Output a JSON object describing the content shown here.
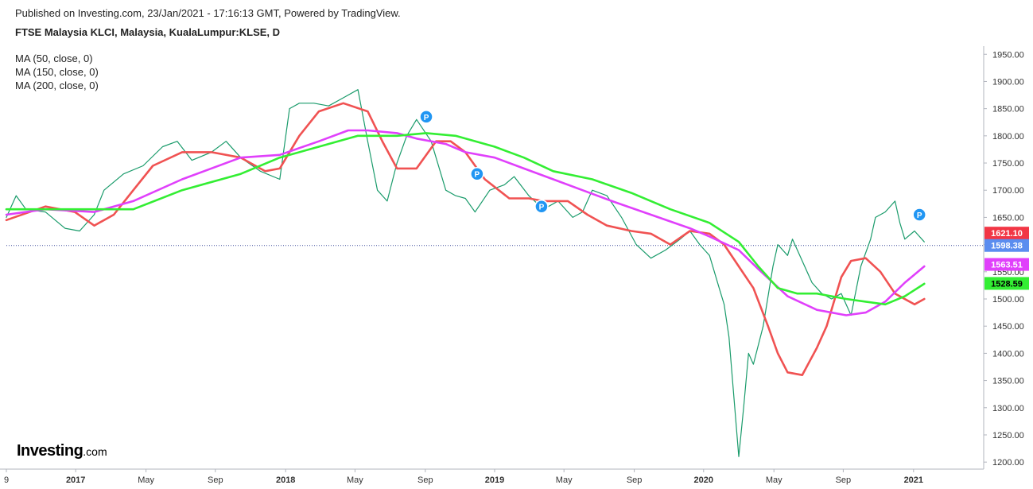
{
  "header": {
    "published": "Published on Investing.com, 23/Jan/2021 - 17:16:13 GMT, Powered by TradingView.",
    "symbol": "FTSE Malaysia KLCI, Malaysia, KualaLumpur:KLSE, D"
  },
  "indicators": [
    {
      "label": "MA (50, close, 0)",
      "color": "#f05252"
    },
    {
      "label": "MA (150, close, 0)",
      "color": "#e040fb"
    },
    {
      "label": "MA (200, close, 0)",
      "color": "#33ee33"
    }
  ],
  "logo": {
    "bold": "Investing",
    "thin": ".com"
  },
  "chart_data": {
    "type": "line",
    "ylim": [
      1190,
      1965
    ],
    "y_ticks": [
      "1950.00",
      "1900.00",
      "1850.00",
      "1800.00",
      "1750.00",
      "1700.00",
      "1650.00",
      "1600.00",
      "1550.00",
      "1500.00",
      "1450.00",
      "1400.00",
      "1350.00",
      "1300.00",
      "1250.00",
      "1200.00"
    ],
    "x_ticks": [
      "9",
      "2017",
      "May",
      "Sep",
      "2018",
      "May",
      "Sep",
      "2019",
      "May",
      "Sep",
      "2020",
      "May",
      "Sep",
      "2021"
    ],
    "x_tick_positions": [
      0.0,
      0.071,
      0.143,
      0.214,
      0.286,
      0.357,
      0.429,
      0.5,
      0.571,
      0.643,
      0.714,
      0.786,
      0.857,
      0.929
    ],
    "series": [
      {
        "role": "price",
        "color": "#1a9b6b",
        "x": [
          0.0,
          0.01,
          0.02,
          0.04,
          0.06,
          0.075,
          0.09,
          0.1,
          0.12,
          0.14,
          0.16,
          0.175,
          0.19,
          0.21,
          0.225,
          0.24,
          0.26,
          0.28,
          0.29,
          0.3,
          0.315,
          0.33,
          0.345,
          0.36,
          0.37,
          0.38,
          0.39,
          0.4,
          0.41,
          0.42,
          0.435,
          0.45,
          0.46,
          0.47,
          0.48,
          0.495,
          0.51,
          0.52,
          0.535,
          0.55,
          0.565,
          0.58,
          0.59,
          0.6,
          0.615,
          0.63,
          0.645,
          0.66,
          0.675,
          0.69,
          0.7,
          0.71,
          0.72,
          0.73,
          0.735,
          0.74,
          0.75,
          0.755,
          0.76,
          0.765,
          0.775,
          0.785,
          0.79,
          0.8,
          0.805,
          0.815,
          0.825,
          0.835,
          0.845,
          0.855,
          0.865,
          0.875,
          0.885,
          0.89,
          0.9,
          0.91,
          0.915,
          0.92,
          0.93,
          0.94
        ],
        "values": [
          1650,
          1690,
          1665,
          1660,
          1630,
          1625,
          1655,
          1700,
          1730,
          1745,
          1780,
          1790,
          1755,
          1770,
          1790,
          1760,
          1735,
          1720,
          1850,
          1860,
          1860,
          1855,
          1870,
          1885,
          1790,
          1700,
          1680,
          1750,
          1800,
          1830,
          1790,
          1700,
          1690,
          1685,
          1660,
          1700,
          1710,
          1725,
          1690,
          1665,
          1680,
          1650,
          1660,
          1700,
          1690,
          1650,
          1600,
          1575,
          1590,
          1610,
          1625,
          1600,
          1580,
          1520,
          1490,
          1430,
          1210,
          1300,
          1400,
          1380,
          1450,
          1560,
          1600,
          1580,
          1610,
          1570,
          1530,
          1510,
          1500,
          1510,
          1470,
          1560,
          1610,
          1650,
          1660,
          1680,
          1640,
          1610,
          1625,
          1605
        ]
      },
      {
        "label": "MA (50, close, 0)",
        "color": "#f05252",
        "x": [
          0.0,
          0.04,
          0.07,
          0.09,
          0.11,
          0.13,
          0.15,
          0.18,
          0.21,
          0.24,
          0.265,
          0.28,
          0.3,
          0.32,
          0.345,
          0.37,
          0.385,
          0.4,
          0.42,
          0.44,
          0.455,
          0.47,
          0.49,
          0.515,
          0.535,
          0.55,
          0.575,
          0.595,
          0.615,
          0.64,
          0.66,
          0.68,
          0.7,
          0.72,
          0.735,
          0.75,
          0.765,
          0.78,
          0.79,
          0.8,
          0.815,
          0.83,
          0.84,
          0.855,
          0.865,
          0.88,
          0.895,
          0.91,
          0.93,
          0.94
        ],
        "values": [
          1645,
          1670,
          1660,
          1635,
          1655,
          1700,
          1745,
          1770,
          1770,
          1760,
          1735,
          1740,
          1800,
          1845,
          1860,
          1845,
          1790,
          1740,
          1740,
          1790,
          1790,
          1770,
          1720,
          1685,
          1685,
          1680,
          1680,
          1655,
          1635,
          1625,
          1620,
          1600,
          1625,
          1620,
          1600,
          1560,
          1520,
          1450,
          1400,
          1365,
          1360,
          1410,
          1450,
          1540,
          1570,
          1575,
          1550,
          1510,
          1490,
          1500
        ]
      },
      {
        "label": "MA (150, close, 0)",
        "color": "#e040fb",
        "x": [
          0.0,
          0.04,
          0.09,
          0.13,
          0.18,
          0.24,
          0.28,
          0.32,
          0.35,
          0.37,
          0.4,
          0.42,
          0.45,
          0.47,
          0.5,
          0.53,
          0.56,
          0.59,
          0.62,
          0.66,
          0.7,
          0.72,
          0.75,
          0.77,
          0.8,
          0.83,
          0.86,
          0.88,
          0.9,
          0.92,
          0.94
        ],
        "values": [
          1655,
          1665,
          1660,
          1680,
          1720,
          1760,
          1765,
          1790,
          1810,
          1810,
          1805,
          1795,
          1785,
          1770,
          1760,
          1740,
          1720,
          1700,
          1680,
          1655,
          1630,
          1615,
          1590,
          1555,
          1505,
          1480,
          1470,
          1475,
          1495,
          1530,
          1560
        ]
      },
      {
        "label": "MA (200, close, 0)",
        "color": "#33ee33",
        "x": [
          0.0,
          0.05,
          0.08,
          0.13,
          0.18,
          0.24,
          0.28,
          0.32,
          0.36,
          0.4,
          0.43,
          0.46,
          0.5,
          0.53,
          0.56,
          0.6,
          0.64,
          0.68,
          0.72,
          0.75,
          0.77,
          0.79,
          0.81,
          0.83,
          0.86,
          0.88,
          0.9,
          0.92,
          0.94
        ],
        "values": [
          1665,
          1665,
          1665,
          1665,
          1700,
          1730,
          1760,
          1780,
          1800,
          1800,
          1805,
          1800,
          1780,
          1760,
          1735,
          1720,
          1695,
          1665,
          1640,
          1605,
          1560,
          1520,
          1510,
          1510,
          1500,
          1495,
          1490,
          1505,
          1528
        ]
      }
    ],
    "price_badges": [
      {
        "value": "1621.10",
        "y": 1621.1,
        "color": "#f23645"
      },
      {
        "value": "1598.38",
        "y": 1598.38,
        "color": "#5b8def"
      },
      {
        "value": "1563.51",
        "y": 1563.51,
        "color": "#e040fb"
      },
      {
        "value": "1528.59",
        "y": 1528.59,
        "color": "#33ee33"
      }
    ],
    "reference_line": 1598.38,
    "markers": [
      {
        "label": "P",
        "x": 0.43,
        "y": 1835
      },
      {
        "label": "P",
        "x": 0.482,
        "y": 1730
      },
      {
        "label": "P",
        "x": 0.548,
        "y": 1670
      },
      {
        "label": "P",
        "x": 0.935,
        "y": 1655
      }
    ],
    "grid": false
  }
}
